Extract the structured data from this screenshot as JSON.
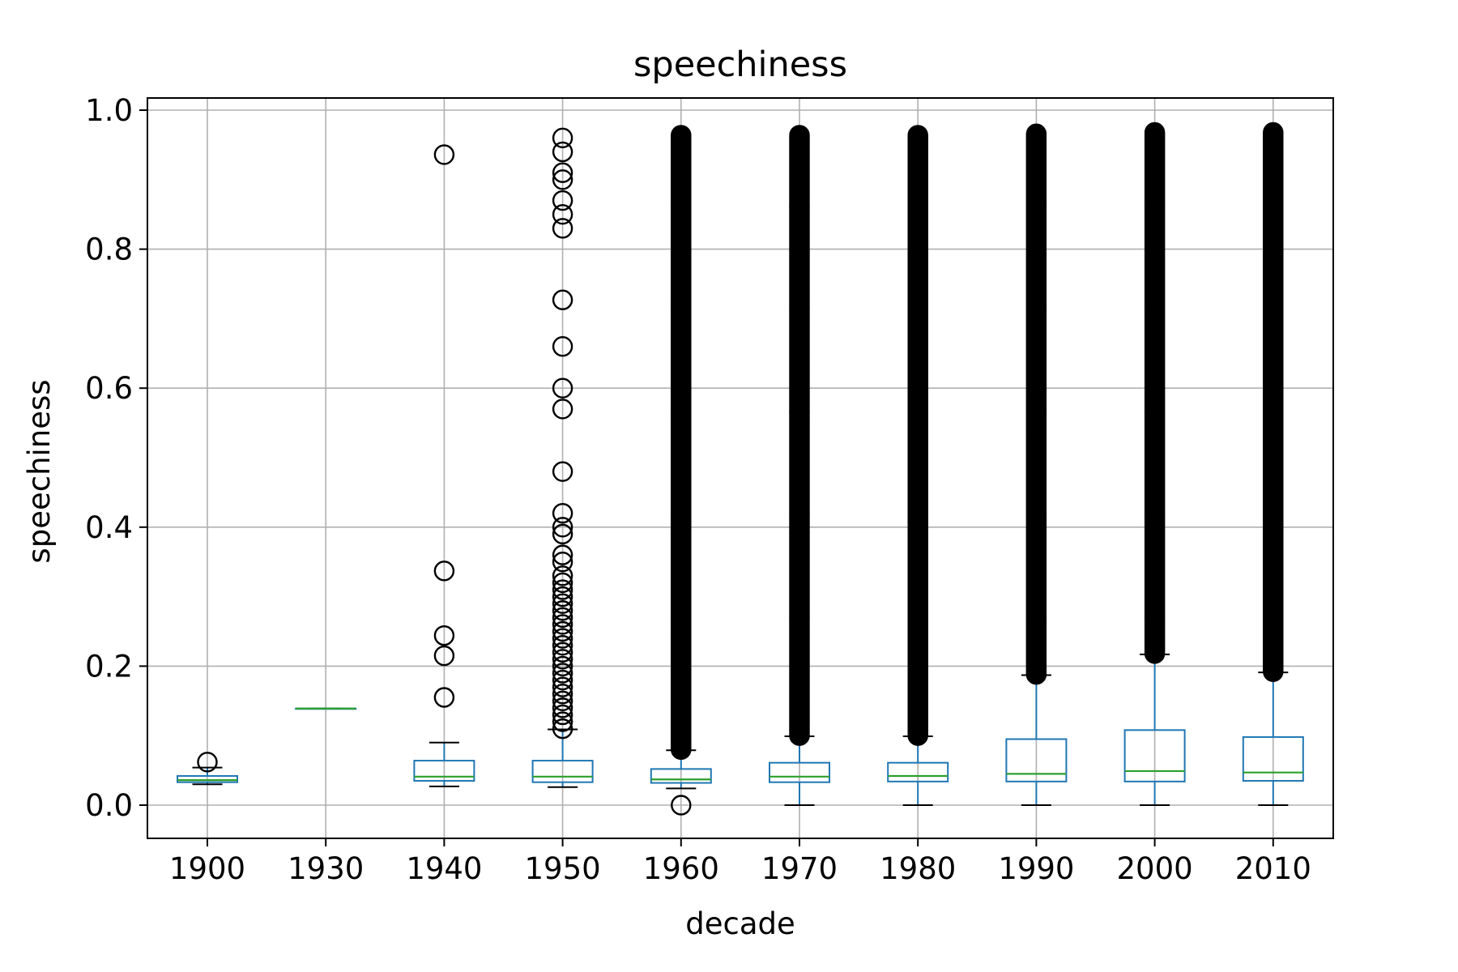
{
  "chart_data": {
    "type": "box",
    "title": "speechiness",
    "xlabel": "decade",
    "ylabel": "speechiness",
    "ylim": [
      -0.047,
      1.017
    ],
    "yticks": [
      0.0,
      0.2,
      0.4,
      0.6,
      0.8,
      1.0
    ],
    "ytick_labels": [
      "0.0",
      "0.2",
      "0.4",
      "0.6",
      "0.8",
      "1.0"
    ],
    "grid": true,
    "categories": [
      "1900",
      "1930",
      "1940",
      "1950",
      "1960",
      "1970",
      "1980",
      "1990",
      "2000",
      "2010"
    ],
    "boxes": [
      {
        "category": "1900",
        "whislo": 0.03,
        "q1": 0.033,
        "med": 0.036,
        "q3": 0.042,
        "whishi": 0.054,
        "fliers": [
          0.062
        ]
      },
      {
        "category": "1930",
        "whislo": 0.139,
        "q1": 0.139,
        "med": 0.139,
        "q3": 0.139,
        "whishi": 0.139,
        "fliers": []
      },
      {
        "category": "1940",
        "whislo": 0.027,
        "q1": 0.035,
        "med": 0.041,
        "q3": 0.064,
        "whishi": 0.09,
        "fliers": [
          0.155,
          0.215,
          0.244,
          0.337,
          0.936
        ]
      },
      {
        "category": "1950",
        "whislo": 0.026,
        "q1": 0.033,
        "med": 0.041,
        "q3": 0.064,
        "whishi": 0.109,
        "fliers": [
          0.11,
          0.12,
          0.13,
          0.14,
          0.15,
          0.16,
          0.17,
          0.18,
          0.19,
          0.2,
          0.21,
          0.22,
          0.23,
          0.24,
          0.25,
          0.26,
          0.27,
          0.28,
          0.29,
          0.3,
          0.31,
          0.32,
          0.33,
          0.35,
          0.36,
          0.39,
          0.4,
          0.42,
          0.48,
          0.57,
          0.6,
          0.66,
          0.727,
          0.83,
          0.85,
          0.87,
          0.9,
          0.91,
          0.94,
          0.96
        ]
      },
      {
        "category": "1960",
        "whislo": 0.024,
        "q1": 0.032,
        "med": 0.037,
        "q3": 0.052,
        "whishi": 0.079,
        "fliers": [
          0.0
        ],
        "flier_band": [
          0.08,
          0.965
        ]
      },
      {
        "category": "1970",
        "whislo": 0.0,
        "q1": 0.033,
        "med": 0.041,
        "q3": 0.061,
        "whishi": 0.099,
        "fliers": [],
        "flier_band": [
          0.1,
          0.965
        ]
      },
      {
        "category": "1980",
        "whislo": 0.0,
        "q1": 0.034,
        "med": 0.042,
        "q3": 0.061,
        "whishi": 0.099,
        "fliers": [],
        "flier_band": [
          0.1,
          0.965
        ]
      },
      {
        "category": "1990",
        "whislo": 0.0,
        "q1": 0.034,
        "med": 0.045,
        "q3": 0.095,
        "whishi": 0.187,
        "fliers": [],
        "flier_band": [
          0.188,
          0.967
        ]
      },
      {
        "category": "2000",
        "whislo": 0.0,
        "q1": 0.034,
        "med": 0.049,
        "q3": 0.108,
        "whishi": 0.217,
        "fliers": [],
        "flier_band": [
          0.218,
          0.968
        ]
      },
      {
        "category": "2010",
        "whislo": 0.0,
        "q1": 0.035,
        "med": 0.047,
        "q3": 0.098,
        "whishi": 0.191,
        "fliers": [],
        "flier_band": [
          0.192,
          0.968
        ]
      }
    ],
    "colors": {
      "box": "#1f77b4",
      "median": "#2ca02c",
      "flier": "#000000",
      "grid": "#b0b0b0"
    }
  }
}
